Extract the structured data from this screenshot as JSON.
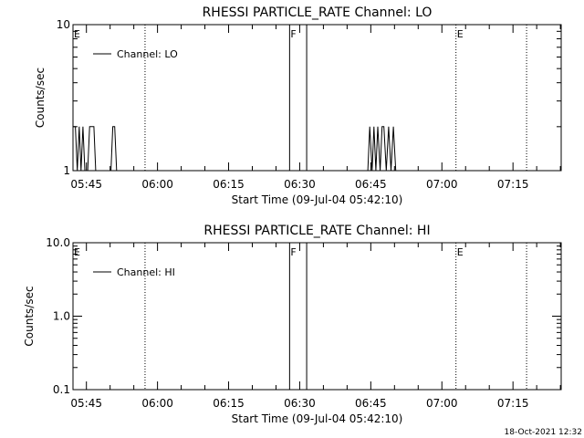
{
  "footer": {
    "timestamp": "18-Oct-2021 12:32"
  },
  "chart_data": [
    {
      "type": "line",
      "title": "RHESSI PARTICLE_RATE Channel: LO",
      "xlabel": "Start Time (09-Jul-04 05:42:10)",
      "ylabel": "Counts/sec",
      "y_scale": "log",
      "ylim": [
        1,
        10
      ],
      "y_ticks": [
        1,
        10
      ],
      "y_tick_labels": [
        "1",
        "10"
      ],
      "x_range": [
        "05:42:10",
        "07:25:10"
      ],
      "x_tick_labels": [
        "05:45",
        "06:00",
        "06:15",
        "06:30",
        "06:45",
        "07:00",
        "07:15"
      ],
      "x_ticks_min": [
        2.83,
        17.83,
        32.83,
        47.83,
        62.83,
        77.83,
        92.83
      ],
      "grid": false,
      "legend_placement": "top-left",
      "series": [
        {
          "name": "Channel: LO",
          "x_min": [
            0,
            0.5,
            0.9,
            1.3,
            1.7,
            2.1,
            2.5,
            3.1,
            3.5,
            3.9,
            4.4,
            4.8,
            5.2,
            8.0,
            8.4,
            8.8,
            9.2,
            62.2,
            62.6,
            63.1,
            63.5,
            63.9,
            64.3,
            64.8,
            65.2,
            65.6,
            66.1,
            66.6,
            67.1,
            67.6,
            68.1
          ],
          "y": [
            2,
            2,
            1,
            2,
            1,
            2,
            1,
            1,
            2,
            2,
            2,
            1,
            1,
            1,
            2,
            2,
            1,
            1,
            2,
            1,
            2,
            1,
            2,
            1,
            2,
            2,
            1,
            2,
            1,
            2,
            1
          ]
        }
      ],
      "markers": [
        {
          "label": "E",
          "x_min": 0,
          "style": "dotted"
        },
        {
          "label": "",
          "x_min": 15.2,
          "style": "dotted"
        },
        {
          "label": "F",
          "x_min": 45.7,
          "style": "solid"
        },
        {
          "label": "",
          "x_min": 49.3,
          "style": "solid"
        },
        {
          "label": "E",
          "x_min": 80.8,
          "style": "dotted"
        },
        {
          "label": "",
          "x_min": 95.7,
          "style": "dotted"
        }
      ]
    },
    {
      "type": "line",
      "title": "RHESSI PARTICLE_RATE Channel: HI",
      "xlabel": "Start Time (09-Jul-04 05:42:10)",
      "ylabel": "Counts/sec",
      "y_scale": "log",
      "ylim": [
        0.1,
        10
      ],
      "y_ticks": [
        0.1,
        1,
        10
      ],
      "y_tick_labels": [
        "0.1",
        "1.0",
        "10.0"
      ],
      "x_range": [
        "05:42:10",
        "07:25:10"
      ],
      "x_tick_labels": [
        "05:45",
        "06:00",
        "06:15",
        "06:30",
        "06:45",
        "07:00",
        "07:15"
      ],
      "x_ticks_min": [
        2.83,
        17.83,
        32.83,
        47.83,
        62.83,
        77.83,
        92.83
      ],
      "grid": false,
      "legend_placement": "top-left",
      "series": [
        {
          "name": "Channel: HI",
          "x_min": [],
          "y": []
        }
      ],
      "markers": [
        {
          "label": "E",
          "x_min": 0,
          "style": "dotted"
        },
        {
          "label": "",
          "x_min": 15.2,
          "style": "dotted"
        },
        {
          "label": "F",
          "x_min": 45.7,
          "style": "solid"
        },
        {
          "label": "",
          "x_min": 49.3,
          "style": "solid"
        },
        {
          "label": "E",
          "x_min": 80.8,
          "style": "dotted"
        },
        {
          "label": "",
          "x_min": 95.7,
          "style": "dotted"
        }
      ]
    }
  ]
}
